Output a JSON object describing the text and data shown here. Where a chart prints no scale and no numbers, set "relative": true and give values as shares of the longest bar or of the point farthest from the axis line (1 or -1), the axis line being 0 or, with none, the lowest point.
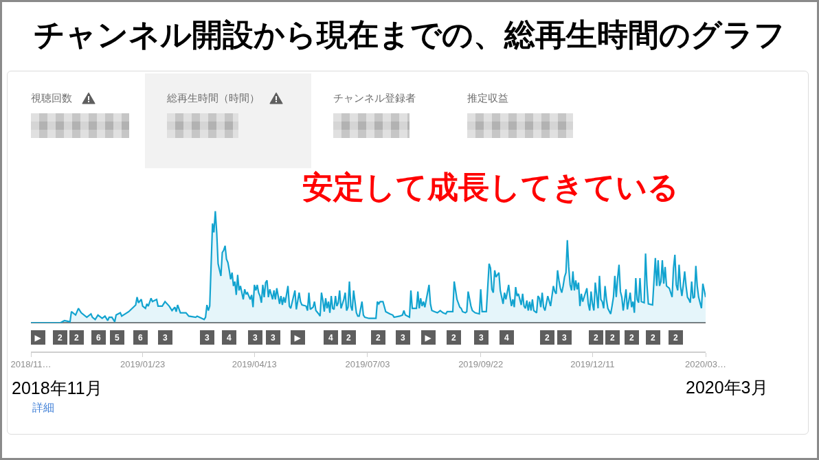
{
  "chart_data": [
    {
      "type": "other",
      "annotations": [
        "視聴回数",
        "総再生時間（時間）",
        "チャンネル登録者",
        "推定収益"
      ]
    },
    {
      "type": "area",
      "title": "チャンネル開設から現在までの、総再生時間のグラフ",
      "relative": true,
      "color": "#12a3cf",
      "xlim": [
        "2018-11-04",
        "2020-03-01"
      ],
      "xticks": [
        {
          "value": "2018-11-04",
          "label": "2018/11…"
        },
        {
          "value": "2019-01-23",
          "label": "2019/01/23"
        },
        {
          "value": "2019-04-13",
          "label": "2019/04/13"
        },
        {
          "value": "2019-07-03",
          "label": "2019/07/03"
        },
        {
          "value": "2019-09-22",
          "label": "2019/09/22"
        },
        {
          "value": "2019-12-11",
          "label": "2019/12/11"
        },
        {
          "value": "2020-03-01",
          "label": "2020/03…"
        }
      ],
      "x": [
        "2018-11-04",
        "2018-11-25",
        "2018-11-28",
        "2018-12-02",
        "2018-12-03",
        "2018-12-06",
        "2018-12-08",
        "2018-12-10",
        "2018-12-14",
        "2018-12-17",
        "2018-12-18",
        "2018-12-20",
        "2018-12-22",
        "2018-12-25",
        "2018-12-27",
        "2018-12-29",
        "2018-12-30",
        "2019-01-01",
        "2019-01-03",
        "2019-01-04",
        "2019-01-07",
        "2019-01-08",
        "2019-01-13",
        "2019-01-18",
        "2019-01-19",
        "2019-01-20",
        "2019-01-22",
        "2019-01-23",
        "2019-01-25",
        "2019-01-26",
        "2019-01-27",
        "2019-01-29",
        "2019-01-30",
        "2019-02-02",
        "2019-02-03",
        "2019-02-06",
        "2019-02-08",
        "2019-02-11",
        "2019-02-13",
        "2019-02-15",
        "2019-02-16",
        "2019-02-17",
        "2019-02-19",
        "2019-02-23",
        "2019-02-25",
        "2019-03-02",
        "2019-03-03",
        "2019-03-08",
        "2019-03-09",
        "2019-03-10",
        "2019-03-11",
        "2019-03-12",
        "2019-03-14",
        "2019-03-15",
        "2019-03-16",
        "2019-03-17",
        "2019-03-18",
        "2019-03-20",
        "2019-03-21",
        "2019-03-22",
        "2019-03-23",
        "2019-03-24",
        "2019-03-25",
        "2019-03-26",
        "2019-03-27",
        "2019-03-28",
        "2019-03-29",
        "2019-03-30",
        "2019-03-31",
        "2019-04-01",
        "2019-04-02",
        "2019-04-03",
        "2019-04-05",
        "2019-04-06",
        "2019-04-07",
        "2019-04-08",
        "2019-04-10",
        "2019-04-11",
        "2019-04-12",
        "2019-04-13",
        "2019-04-14",
        "2019-04-15",
        "2019-04-16",
        "2019-04-17",
        "2019-04-18",
        "2019-04-19",
        "2019-04-20",
        "2019-04-21",
        "2019-04-22",
        "2019-04-23",
        "2019-04-24",
        "2019-04-26",
        "2019-04-27",
        "2019-04-28",
        "2019-04-29",
        "2019-05-01",
        "2019-05-02",
        "2019-05-03",
        "2019-05-04",
        "2019-05-05",
        "2019-05-07",
        "2019-05-08",
        "2019-05-09",
        "2019-05-12",
        "2019-05-13",
        "2019-05-15",
        "2019-05-16",
        "2019-05-17",
        "2019-05-20",
        "2019-05-21",
        "2019-05-22",
        "2019-05-23",
        "2019-05-25",
        "2019-05-26",
        "2019-05-27",
        "2019-05-29",
        "2019-05-30",
        "2019-05-31",
        "2019-06-01",
        "2019-06-02",
        "2019-06-03",
        "2019-06-04",
        "2019-06-05",
        "2019-06-06",
        "2019-06-07",
        "2019-06-08",
        "2019-06-09",
        "2019-06-10",
        "2019-06-11",
        "2019-06-12",
        "2019-06-13",
        "2019-06-14",
        "2019-06-16",
        "2019-06-17",
        "2019-06-18",
        "2019-06-19",
        "2019-06-20",
        "2019-06-21",
        "2019-06-22",
        "2019-06-23",
        "2019-06-25",
        "2019-06-26",
        "2019-06-27",
        "2019-06-29",
        "2019-06-30",
        "2019-07-01",
        "2019-07-04",
        "2019-07-07",
        "2019-07-09",
        "2019-07-10",
        "2019-07-11",
        "2019-07-12",
        "2019-07-14",
        "2019-07-16",
        "2019-07-19",
        "2019-07-21",
        "2019-07-22",
        "2019-07-26",
        "2019-07-28",
        "2019-07-29",
        "2019-07-30",
        "2019-08-02",
        "2019-08-03",
        "2019-08-04",
        "2019-08-07",
        "2019-08-08",
        "2019-08-09",
        "2019-08-10",
        "2019-08-11",
        "2019-08-12",
        "2019-08-13",
        "2019-08-16",
        "2019-08-17",
        "2019-08-18",
        "2019-08-20",
        "2019-08-22",
        "2019-08-24",
        "2019-08-26",
        "2019-08-28",
        "2019-08-29",
        "2019-09-02",
        "2019-09-03",
        "2019-09-04",
        "2019-09-05",
        "2019-09-07",
        "2019-09-08",
        "2019-09-09",
        "2019-09-11",
        "2019-09-12",
        "2019-09-13",
        "2019-09-15",
        "2019-09-16",
        "2019-09-18",
        "2019-09-21",
        "2019-09-22",
        "2019-09-23",
        "2019-09-25",
        "2019-09-26",
        "2019-09-28",
        "2019-09-29",
        "2019-09-30",
        "2019-10-01",
        "2019-10-02",
        "2019-10-03",
        "2019-10-05",
        "2019-10-06",
        "2019-10-07",
        "2019-10-08",
        "2019-10-09",
        "2019-10-10",
        "2019-10-12",
        "2019-10-13",
        "2019-10-14",
        "2019-10-15",
        "2019-10-16",
        "2019-10-17",
        "2019-10-18",
        "2019-10-19",
        "2019-10-21",
        "2019-10-22",
        "2019-10-23",
        "2019-10-24",
        "2019-10-25",
        "2019-10-26",
        "2019-10-27",
        "2019-10-28",
        "2019-10-29",
        "2019-10-30",
        "2019-11-01",
        "2019-11-02",
        "2019-11-03",
        "2019-11-04",
        "2019-11-05",
        "2019-11-06",
        "2019-11-07",
        "2019-11-09",
        "2019-11-11",
        "2019-11-13",
        "2019-11-14",
        "2019-11-15",
        "2019-11-16",
        "2019-11-17",
        "2019-11-18",
        "2019-11-19",
        "2019-11-20",
        "2019-11-21",
        "2019-11-22",
        "2019-11-23",
        "2019-11-24",
        "2019-11-25",
        "2019-11-26",
        "2019-11-27",
        "2019-11-28",
        "2019-11-29",
        "2019-11-30",
        "2019-12-01",
        "2019-12-02",
        "2019-12-03",
        "2019-12-04",
        "2019-12-05",
        "2019-12-07",
        "2019-12-08",
        "2019-12-09",
        "2019-12-10",
        "2019-12-11",
        "2019-12-12",
        "2019-12-13",
        "2019-12-14",
        "2019-12-15",
        "2019-12-16",
        "2019-12-17",
        "2019-12-18",
        "2019-12-19",
        "2019-12-20",
        "2019-12-21",
        "2019-12-22",
        "2019-12-24",
        "2019-12-25",
        "2019-12-26",
        "2019-12-27",
        "2019-12-28",
        "2019-12-29",
        "2019-12-30",
        "2019-12-31",
        "2020-01-01",
        "2020-01-02",
        "2020-01-04",
        "2020-01-05",
        "2020-01-07",
        "2020-01-08",
        "2020-01-09",
        "2020-01-10",
        "2020-01-11",
        "2020-01-12",
        "2020-01-13",
        "2020-01-14",
        "2020-01-15",
        "2020-01-17",
        "2020-01-18",
        "2020-01-19",
        "2020-01-20",
        "2020-01-23",
        "2020-01-25",
        "2020-01-26",
        "2020-01-27",
        "2020-01-28",
        "2020-01-29",
        "2020-01-30",
        "2020-01-31",
        "2020-02-01",
        "2020-02-02",
        "2020-02-04",
        "2020-02-06",
        "2020-02-07",
        "2020-02-08",
        "2020-02-09",
        "2020-02-10",
        "2020-02-11",
        "2020-02-12",
        "2020-02-13",
        "2020-02-14",
        "2020-02-15",
        "2020-02-16",
        "2020-02-17",
        "2020-02-18",
        "2020-02-19",
        "2020-02-20",
        "2020-02-21",
        "2020-02-22",
        "2020-02-23",
        "2020-02-24",
        "2020-02-25",
        "2020-02-26",
        "2020-02-27",
        "2020-02-28",
        "2020-02-29",
        "2020-03-01"
      ],
      "values": [
        0,
        0,
        0.02,
        0.01,
        0.1,
        0.07,
        0.13,
        0.09,
        0.05,
        0.08,
        0.05,
        0.03,
        0.07,
        0.04,
        0.06,
        0.02,
        0.05,
        0.05,
        0.01,
        0.07,
        0.09,
        0.06,
        0.1,
        0.16,
        0.23,
        0.18,
        0.21,
        0.15,
        0.13,
        0.17,
        0.15,
        0.22,
        0.19,
        0.21,
        0.15,
        0.15,
        0.19,
        0.15,
        0.11,
        0.14,
        0.1,
        0.16,
        0.09,
        0.09,
        0.06,
        0.05,
        0.06,
        0.03,
        0.05,
        0.16,
        0.11,
        0.15,
        0.89,
        0.81,
        1,
        0.81,
        0.53,
        0.42,
        0.63,
        0.65,
        0.69,
        0.57,
        0.54,
        0.47,
        0.39,
        0.45,
        0.33,
        0.37,
        0.25,
        0.43,
        0.29,
        0.33,
        0.21,
        0.3,
        0.26,
        0.27,
        0.21,
        0.25,
        0.14,
        0.34,
        0.29,
        0.34,
        0.27,
        0.24,
        0.18,
        0.34,
        0.23,
        0.36,
        0.38,
        0.23,
        0.3,
        0.21,
        0.29,
        0.21,
        0.31,
        0.17,
        0.24,
        0.16,
        0.23,
        0.18,
        0.33,
        0.15,
        0.13,
        0.29,
        0.12,
        0.27,
        0.19,
        0.16,
        0.15,
        0.11,
        0.27,
        0.12,
        0.14,
        0.19,
        0.11,
        0.08,
        0.06,
        0.27,
        0.2,
        0.1,
        0.22,
        0.13,
        0.19,
        0.09,
        0.24,
        0.13,
        0.12,
        0.24,
        0.15,
        0.18,
        0.29,
        0.13,
        0.21,
        0.27,
        0.11,
        0.14,
        0.37,
        0.15,
        0.11,
        0.29,
        0.09,
        0.06,
        0.06,
        0.19,
        0.07,
        0.05,
        0.04,
        0.04,
        0.04,
        0.19,
        0.17,
        0.19,
        0.19,
        0.1,
        0.08,
        0.07,
        0.05,
        0.06,
        0.07,
        0.11,
        0.07,
        0.05,
        0.29,
        0.13,
        0.13,
        0.28,
        0.13,
        0.22,
        0.15,
        0.19,
        0.14,
        0.34,
        0.17,
        0.11,
        0.1,
        0.09,
        0.11,
        0.09,
        0.08,
        0.1,
        0.1,
        0.37,
        0.29,
        0.21,
        0.14,
        0.13,
        0.1,
        0.09,
        0.1,
        0.28,
        0.15,
        0.11,
        0.09,
        0.08,
        0.3,
        0.1,
        0.1,
        0.1,
        0.53,
        0.49,
        0.3,
        0.27,
        0.47,
        0.41,
        0.45,
        0.29,
        0.23,
        0.17,
        0.27,
        0.21,
        0.34,
        0.23,
        0.15,
        0.21,
        0.14,
        0.32,
        0.24,
        0.26,
        0.16,
        0.26,
        0.15,
        0.13,
        0.2,
        0.11,
        0.19,
        0.11,
        0.21,
        0.11,
        0.09,
        0.24,
        0.22,
        0.14,
        0.27,
        0.14,
        0.11,
        0.24,
        0.15,
        0.33,
        0.28,
        0.26,
        0.47,
        0.38,
        0.31,
        0.27,
        0.33,
        0.41,
        0.45,
        0.74,
        0.5,
        0.34,
        0.29,
        0.46,
        0.29,
        0.38,
        0.3,
        0.36,
        0.15,
        0.26,
        0.19,
        0.23,
        0.31,
        0.17,
        0.11,
        0.28,
        0.17,
        0.11,
        0.36,
        0.25,
        0.13,
        0.42,
        0.21,
        0.19,
        0.13,
        0.33,
        0.21,
        0.13,
        0.08,
        0.15,
        0.23,
        0.42,
        0.23,
        0.4,
        0.52,
        0.28,
        0.23,
        0.11,
        0.3,
        0.12,
        0.27,
        0.14,
        0.19,
        0.09,
        0.4,
        0.21,
        0.18,
        0.4,
        0.19,
        0.18,
        0.62,
        0.34,
        0.17,
        0.16,
        0.58,
        0.33,
        0.56,
        0.33,
        0.37,
        0.56,
        0.35,
        0.5,
        0.33,
        0.31,
        0.23,
        0.49,
        0.61,
        0.34,
        0.29,
        0.52,
        0.33,
        0.24,
        0.34,
        0.46,
        0.33,
        0.23,
        0.21,
        0.18,
        0.37,
        0.22,
        0.23,
        0.51,
        0.33,
        0.23,
        0.18,
        0.13,
        0.35,
        0.29,
        0.23
      ],
      "annotations": [
        "安定して成長してきている",
        "2018年11月",
        "2020年3月",
        "詳細",
        "▶",
        "2",
        "2",
        "6",
        "5",
        "6",
        "3",
        "3",
        "4",
        "3",
        "3",
        "▶",
        "4",
        "2",
        "2",
        "3",
        "▶",
        "2",
        "3",
        "4",
        "2",
        "3",
        "2",
        "2",
        "2",
        "2",
        "2"
      ]
    }
  ]
}
